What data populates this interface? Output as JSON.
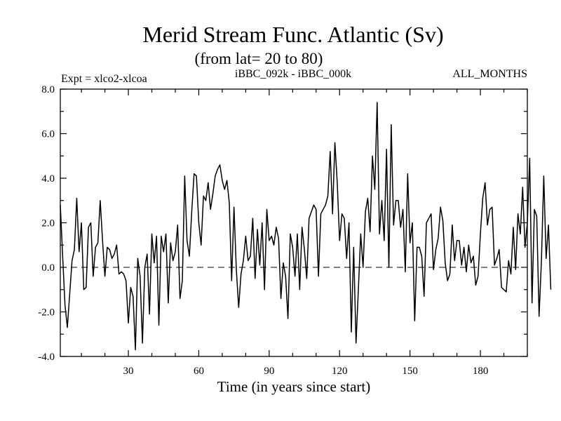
{
  "chart_data": {
    "type": "line",
    "title": "Merid Stream Func. Atlantic (Sv)",
    "subtitle": "(from lat= 20 to 80)",
    "annotations": {
      "left": "Expt = xlco2-xlcoa",
      "center": "iBBC_092k - iBBC_000k",
      "right": "ALL_MONTHS"
    },
    "xlabel": "Time (in years since start)",
    "ylabel": "",
    "xlim": [
      1,
      200
    ],
    "ylim": [
      -4.0,
      8.0
    ],
    "x_ticks": [
      30,
      60,
      90,
      120,
      150,
      180
    ],
    "x_tick_labels": [
      "30",
      "60",
      "90",
      "120",
      "150",
      "180"
    ],
    "y_ticks": [
      -4,
      -2,
      0,
      2,
      4,
      6,
      8
    ],
    "y_tick_labels": [
      "-4.0",
      "-2.0",
      "0.0",
      "2.0",
      "4.0",
      "6.0",
      "8.0"
    ],
    "reference_line": {
      "y": 0,
      "style": "dashed"
    },
    "series": [
      {
        "name": "iBBC_092k - iBBC_000k",
        "x_start": 1,
        "x_step": 1,
        "values": [
          2.8,
          0.5,
          -1.7,
          -2.7,
          -1.2,
          0.3,
          0.8,
          3.1,
          0.7,
          2.0,
          -1.0,
          -0.9,
          1.8,
          2.0,
          -0.4,
          0.9,
          1.1,
          3.0,
          1.2,
          -0.4,
          0.9,
          0.8,
          0.4,
          0.6,
          1.0,
          -0.3,
          -0.2,
          -0.3,
          -0.6,
          -2.5,
          -0.9,
          -1.3,
          -3.7,
          0.4,
          -0.4,
          -3.4,
          0.0,
          0.6,
          -2.1,
          1.5,
          0.2,
          1.4,
          -2.6,
          1.4,
          0.7,
          1.5,
          -1.6,
          1.1,
          0.3,
          0.7,
          1.9,
          -1.4,
          -0.6,
          4.1,
          1.2,
          0.5,
          2.5,
          4.2,
          4.1,
          2.0,
          1.0,
          3.2,
          3.0,
          3.8,
          2.6,
          3.3,
          4.1,
          4.4,
          4.6,
          3.9,
          3.5,
          3.9,
          2.9,
          -0.6,
          2.7,
          -0.1,
          -1.8,
          -0.3,
          0.3,
          1.4,
          0.3,
          0.5,
          2.2,
          -0.5,
          1.7,
          0.1,
          2.0,
          -1.0,
          2.6,
          1.2,
          1.4,
          1.0,
          1.8,
          1.3,
          -1.4,
          0.2,
          -0.4,
          -2.3,
          1.5,
          0.9,
          -0.4,
          1.5,
          -1.0,
          1.8,
          0.8,
          -0.5,
          2.2,
          2.5,
          2.8,
          2.6,
          -0.4,
          2.4,
          2.6,
          2.8,
          3.2,
          5.2,
          2.4,
          5.6,
          3.8,
          1.2,
          2.4,
          2.2,
          0.4,
          2.0,
          -2.9,
          0.9,
          -3.4,
          -1.0,
          1.5,
          0.0,
          2.5,
          3.1,
          1.6,
          5.0,
          3.5,
          7.4,
          1.5,
          3.0,
          1.2,
          5.3,
          0.0,
          6.4,
          1.9,
          3.0,
          3.0,
          1.8,
          2.6,
          -0.2,
          4.2,
          1.1,
          2.0,
          -2.4,
          0.9,
          0.9,
          0.5,
          -1.3,
          2.0,
          2.2,
          2.4,
          -0.1,
          0.8,
          1.3,
          2.7,
          2.1,
          0.2,
          -0.6,
          -0.3,
          1.9,
          0.3,
          1.2,
          1.2,
          0.1,
          0.9,
          -0.2,
          1.0,
          0.2,
          0.5,
          -0.8,
          -0.4,
          1.5,
          3.1,
          3.8,
          1.9,
          2.6,
          2.7,
          0.1,
          0.4,
          0.8,
          -0.9,
          -1.0,
          -1.1,
          0.3,
          -0.3,
          1.8,
          -0.1,
          2.4,
          1.5,
          3.6,
          0.9,
          2.0,
          4.9,
          -1.6,
          2.6,
          2.3,
          -2.2,
          0.3,
          4.1,
          0.4,
          1.9,
          -1.0
        ]
      }
    ]
  }
}
